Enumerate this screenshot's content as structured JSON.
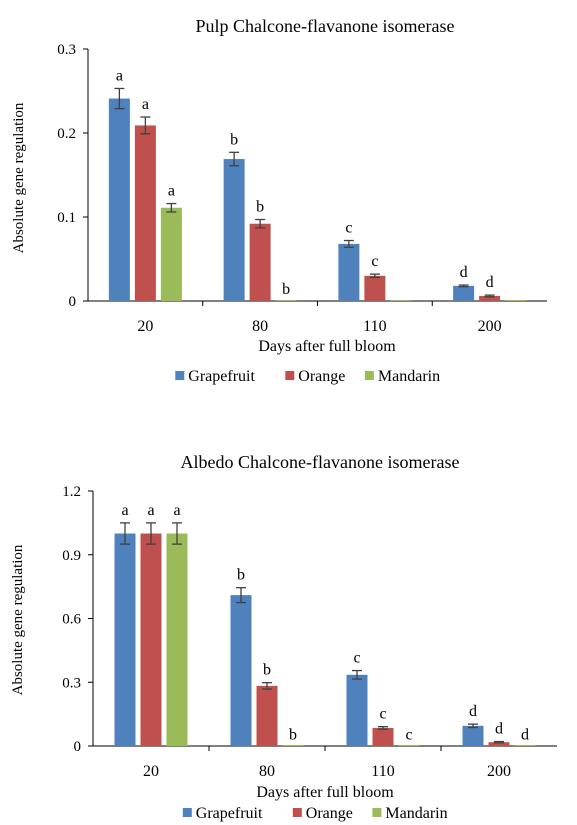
{
  "series_colors": {
    "Grapefruit": "#4f81bd",
    "Orange": "#c0504d",
    "Mandarin": "#9bbb59"
  },
  "chart_data": [
    {
      "type": "bar",
      "title": "Pulp Chalcone-flavanone isomerase",
      "xlabel": "Days after full bloom",
      "ylabel": "Absolute gene regulation",
      "categories": [
        "20",
        "80",
        "110",
        "200"
      ],
      "ylim": [
        0,
        0.3
      ],
      "yticks": [
        "0",
        "0.1",
        "0.2",
        "0.3"
      ],
      "legend": "bottom",
      "grid": false,
      "series": [
        {
          "name": "Grapefruit",
          "values": [
            0.241,
            0.169,
            0.068,
            0.018
          ],
          "errors": [
            0.012,
            0.008,
            0.004,
            0.001
          ],
          "labels": [
            "a",
            "b",
            "c",
            "d"
          ]
        },
        {
          "name": "Orange",
          "values": [
            0.209,
            0.092,
            0.03,
            0.006
          ],
          "errors": [
            0.01,
            0.005,
            0.002,
            0.001
          ],
          "labels": [
            "a",
            "b",
            "c",
            "d"
          ]
        },
        {
          "name": "Mandarin",
          "values": [
            0.111,
            0.001,
            0.0005,
            0.0005
          ],
          "errors": [
            0.005,
            0,
            0,
            0
          ],
          "labels": [
            "a",
            "b",
            "",
            ""
          ]
        }
      ]
    },
    {
      "type": "bar",
      "title": "Albedo Chalcone-flavanone isomerase",
      "xlabel": "Days after full bloom",
      "ylabel": "Absolute gene regulation",
      "categories": [
        "20",
        "80",
        "110",
        "200"
      ],
      "ylim": [
        0,
        1.2
      ],
      "yticks": [
        "0",
        "0.3",
        "0.6",
        "0.9",
        "1.2"
      ],
      "legend": "bottom",
      "grid": false,
      "series": [
        {
          "name": "Grapefruit",
          "values": [
            1.0,
            0.71,
            0.335,
            0.095
          ],
          "errors": [
            0.05,
            0.035,
            0.02,
            0.008
          ],
          "labels": [
            "a",
            "b",
            "c",
            "d"
          ]
        },
        {
          "name": "Orange",
          "values": [
            1.0,
            0.283,
            0.085,
            0.018
          ],
          "errors": [
            0.05,
            0.015,
            0.006,
            0.003
          ],
          "labels": [
            "a",
            "b",
            "c",
            "d"
          ]
        },
        {
          "name": "Mandarin",
          "values": [
            1.0,
            0.003,
            0.003,
            0.003
          ],
          "errors": [
            0.05,
            0,
            0,
            0
          ],
          "labels": [
            "a",
            "b",
            "c",
            "d"
          ]
        }
      ]
    }
  ]
}
